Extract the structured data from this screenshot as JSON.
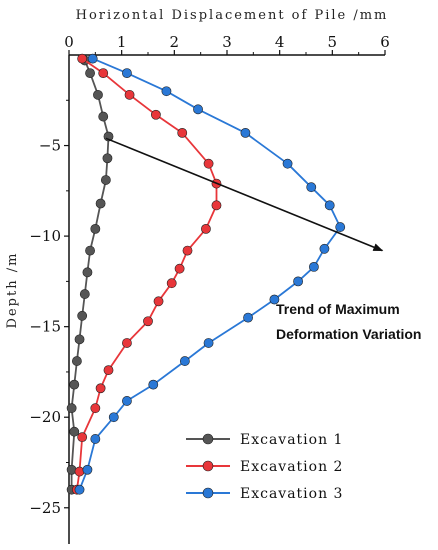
{
  "chart_data": {
    "type": "line",
    "title": "",
    "xlabel": "Horizontal Displacement of Pile /mm",
    "ylabel": "Depth /m",
    "xlim": [
      0,
      6
    ],
    "ylim": [
      -27,
      0
    ],
    "x_ticks": [
      0,
      1,
      2,
      3,
      4,
      5,
      6
    ],
    "y_ticks": [
      -5,
      -10,
      -15,
      -20,
      -25
    ],
    "grid": false,
    "legend_position": "bottom-right",
    "series": [
      {
        "name": "Excavation 1",
        "color": "#555555",
        "points": [
          [
            0.3,
            -0.3
          ],
          [
            0.4,
            -1.0
          ],
          [
            0.55,
            -2.2
          ],
          [
            0.65,
            -3.4
          ],
          [
            0.75,
            -4.5
          ],
          [
            0.73,
            -5.7
          ],
          [
            0.7,
            -6.9
          ],
          [
            0.6,
            -8.2
          ],
          [
            0.5,
            -9.6
          ],
          [
            0.4,
            -10.8
          ],
          [
            0.35,
            -12.0
          ],
          [
            0.3,
            -13.2
          ],
          [
            0.25,
            -14.4
          ],
          [
            0.2,
            -15.7
          ],
          [
            0.15,
            -16.9
          ],
          [
            0.1,
            -18.2
          ],
          [
            0.05,
            -19.5
          ],
          [
            0.1,
            -20.8
          ],
          [
            0.05,
            -22.9
          ],
          [
            0.05,
            -24.0
          ]
        ]
      },
      {
        "name": "Excavation 2",
        "color": "#e8363a",
        "points": [
          [
            0.25,
            -0.2
          ],
          [
            0.65,
            -1.0
          ],
          [
            1.15,
            -2.2
          ],
          [
            1.65,
            -3.3
          ],
          [
            2.15,
            -4.3
          ],
          [
            2.65,
            -6.0
          ],
          [
            2.8,
            -7.1
          ],
          [
            2.8,
            -8.3
          ],
          [
            2.6,
            -9.6
          ],
          [
            2.25,
            -10.8
          ],
          [
            2.1,
            -11.8
          ],
          [
            1.95,
            -12.6
          ],
          [
            1.7,
            -13.6
          ],
          [
            1.5,
            -14.7
          ],
          [
            1.1,
            -15.9
          ],
          [
            0.75,
            -17.4
          ],
          [
            0.6,
            -18.4
          ],
          [
            0.5,
            -19.5
          ],
          [
            0.25,
            -21.1
          ],
          [
            0.2,
            -23.0
          ],
          [
            0.15,
            -24.0
          ]
        ]
      },
      {
        "name": "Excavation 3",
        "color": "#2a78d6",
        "points": [
          [
            0.45,
            -0.2
          ],
          [
            1.1,
            -1.0
          ],
          [
            1.85,
            -2.0
          ],
          [
            2.45,
            -3.0
          ],
          [
            3.35,
            -4.3
          ],
          [
            4.15,
            -6.0
          ],
          [
            4.6,
            -7.3
          ],
          [
            4.95,
            -8.3
          ],
          [
            5.15,
            -9.5
          ],
          [
            4.85,
            -10.7
          ],
          [
            4.65,
            -11.7
          ],
          [
            4.35,
            -12.5
          ],
          [
            3.9,
            -13.5
          ],
          [
            3.4,
            -14.5
          ],
          [
            2.65,
            -15.9
          ],
          [
            2.2,
            -16.9
          ],
          [
            1.6,
            -18.2
          ],
          [
            1.1,
            -19.1
          ],
          [
            0.85,
            -20.0
          ],
          [
            0.5,
            -21.2
          ],
          [
            0.35,
            -22.9
          ],
          [
            0.2,
            -24.0
          ]
        ]
      }
    ],
    "annotation": {
      "text_line1": "Trend of Maximum",
      "text_line2": "Deformation Variation",
      "arrow_from": [
        0.7,
        -4.6
      ],
      "arrow_to": [
        5.95,
        -10.8
      ]
    }
  }
}
